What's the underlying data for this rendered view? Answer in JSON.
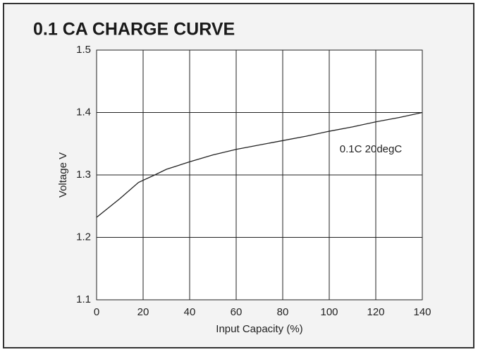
{
  "chart_data": {
    "type": "line",
    "title": "0.1 CA CHARGE CURVE",
    "x_label": "Input Capacity (%)",
    "y_label": "Voltage V",
    "annotation": "0.1C 20degC",
    "x": [
      0,
      10,
      18,
      25,
      30,
      40,
      50,
      60,
      70,
      80,
      90,
      100,
      110,
      120,
      130,
      140
    ],
    "series": [
      {
        "name": "0.1C 20degC",
        "color": "#222222",
        "values": [
          1.232,
          1.262,
          1.288,
          1.3,
          1.309,
          1.321,
          1.332,
          1.341,
          1.348,
          1.355,
          1.362,
          1.37,
          1.377,
          1.385,
          1.392,
          1.4
        ]
      }
    ],
    "xlim": [
      0,
      140
    ],
    "xticks": [
      0,
      20,
      40,
      60,
      80,
      100,
      120,
      140
    ],
    "ylim": [
      1.1,
      1.5
    ],
    "yticks": [
      1.1,
      1.2,
      1.3,
      1.4,
      1.5
    ],
    "grid": true
  }
}
